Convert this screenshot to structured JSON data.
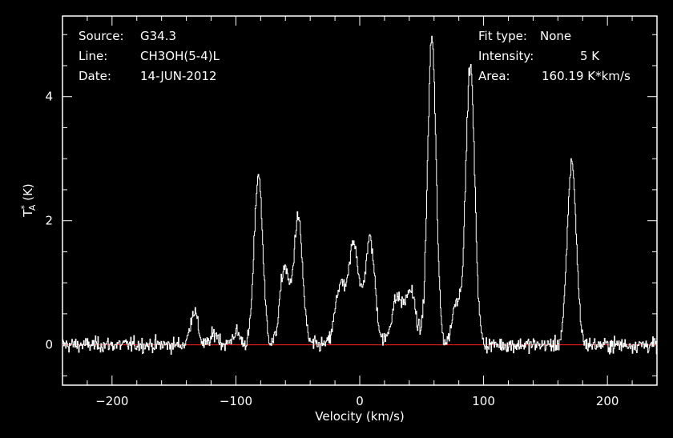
{
  "info_left": {
    "source_key": "Source:",
    "source_val": "G34.3",
    "line_key": "Line:",
    "line_val": "CH3OH(5-4)L",
    "date_key": "Date:",
    "date_val": "14-JUN-2012"
  },
  "info_right": {
    "fit_key": "Fit type:",
    "fit_val": "None",
    "int_key": "Intensity:",
    "int_val": "5 K",
    "area_key": "Area:",
    "area_val": "160.19 K*km/s"
  },
  "chart_data": {
    "type": "line",
    "xlabel": "Velocity (km/s)",
    "ylabel": "T*A (K)",
    "xlim": [
      -240,
      240
    ],
    "ylim": [
      -0.65,
      5.3
    ],
    "xticks": [
      -200,
      -100,
      0,
      100,
      200
    ],
    "xtick_labels": [
      "−200",
      "−100",
      "0",
      "100",
      "200"
    ],
    "yticks": [
      0,
      2,
      4
    ],
    "ytick_labels": [
      "0",
      "2",
      "4"
    ],
    "baseline": 0,
    "colors": {
      "line": "#ffffff",
      "baseline": "#ff2020",
      "frame": "#ffffff",
      "background": "#000000"
    },
    "noise_rms": 0.06,
    "x_step": 0.5,
    "peaks": [
      {
        "v": -134,
        "amp": 0.55,
        "width": 3.0
      },
      {
        "v": -117,
        "amp": 0.18,
        "width": 3.0
      },
      {
        "v": -100,
        "amp": 0.2,
        "width": 3.0
      },
      {
        "v": -82,
        "amp": 2.75,
        "width": 3.4
      },
      {
        "v": -61,
        "amp": 1.25,
        "width": 3.6
      },
      {
        "v": -50,
        "amp": 2.05,
        "width": 3.6
      },
      {
        "v": -16,
        "amp": 0.95,
        "width": 4.0
      },
      {
        "v": -5,
        "amp": 1.65,
        "width": 4.0
      },
      {
        "v": 8,
        "amp": 1.7,
        "width": 4.0
      },
      {
        "v": 30,
        "amp": 0.75,
        "width": 4.5
      },
      {
        "v": 41,
        "amp": 0.85,
        "width": 4.0
      },
      {
        "v": 58,
        "amp": 4.95,
        "width": 3.4
      },
      {
        "v": 78,
        "amp": 0.7,
        "width": 3.5
      },
      {
        "v": 89,
        "amp": 4.5,
        "width": 3.6
      },
      {
        "v": 171,
        "amp": 2.95,
        "width": 3.6
      }
    ]
  }
}
